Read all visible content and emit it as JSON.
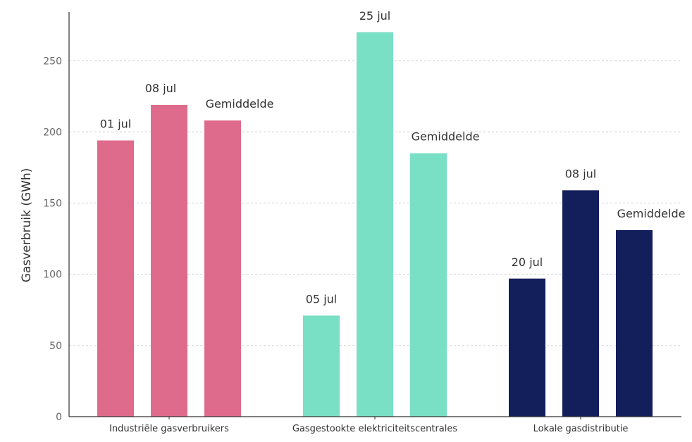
{
  "chart_data": {
    "type": "bar",
    "title": "",
    "xlabel": "",
    "ylabel": "Gasverbruik (GWh)",
    "ylim": [
      0,
      285
    ],
    "yticks": [
      0,
      50,
      100,
      150,
      200,
      250
    ],
    "grid": true,
    "legend": "none",
    "groups": [
      {
        "category": "Industriële gasverbruikers",
        "color": "#df6b8c",
        "bars": [
          {
            "label": "01 jul",
            "value": 194
          },
          {
            "label": "08 jul",
            "value": 219
          },
          {
            "label": "Gemiddelde",
            "value": 208
          }
        ]
      },
      {
        "category": "Gasgestookte elektriciteitscentrales",
        "color": "#79dfc5",
        "bars": [
          {
            "label": "05 jul",
            "value": 71
          },
          {
            "label": "25 jul",
            "value": 270
          },
          {
            "label": "Gemiddelde",
            "value": 185
          }
        ]
      },
      {
        "category": "Lokale gasdistributie",
        "color": "#131f5b",
        "bars": [
          {
            "label": "20 jul",
            "value": 97
          },
          {
            "label": "08 jul",
            "value": 159
          },
          {
            "label": "Gemiddelde",
            "value": 131
          }
        ]
      }
    ]
  }
}
